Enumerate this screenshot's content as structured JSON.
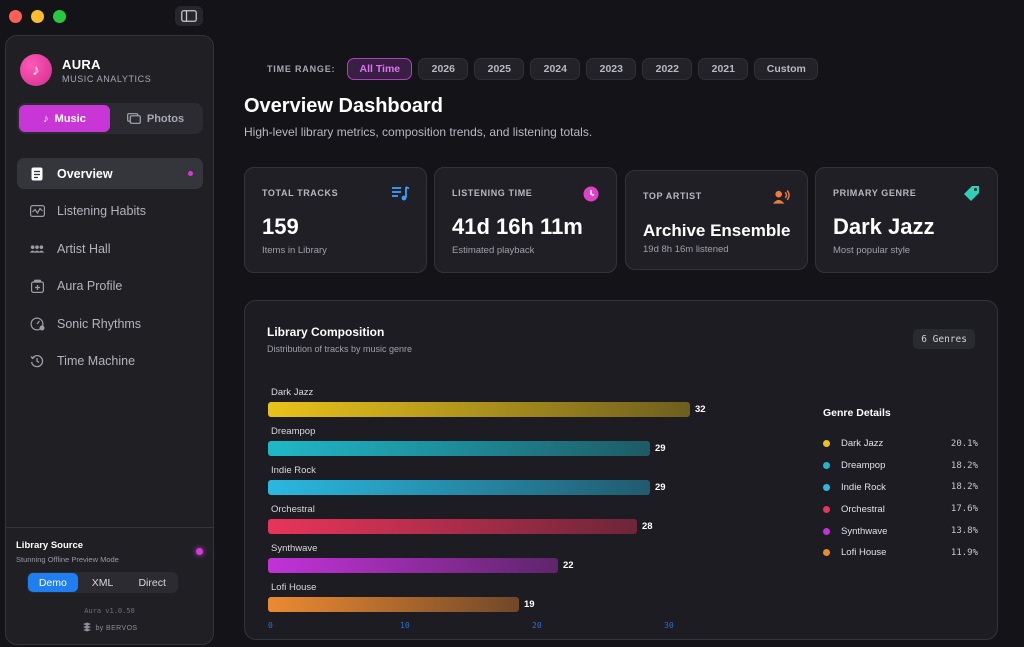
{
  "brand": {
    "name": "AURA",
    "subtitle": "MUSIC ANALYTICS"
  },
  "mode_switch": [
    {
      "label": "Music",
      "icon": "music-note-icon",
      "active": true
    },
    {
      "label": "Photos",
      "icon": "photos-icon",
      "active": false
    }
  ],
  "nav": [
    {
      "label": "Overview",
      "icon": "document-icon",
      "active": true
    },
    {
      "label": "Listening Habits",
      "icon": "activity-chart-icon",
      "active": false
    },
    {
      "label": "Artist Hall",
      "icon": "people-icon",
      "active": false
    },
    {
      "label": "Aura Profile",
      "icon": "profile-box-icon",
      "active": false
    },
    {
      "label": "Sonic Rhythms",
      "icon": "gauge-icon",
      "active": false
    },
    {
      "label": "Time Machine",
      "icon": "history-icon",
      "active": false
    }
  ],
  "library_source": {
    "title": "Library Source",
    "subtitle": "Stunning Offline Preview Mode",
    "options": [
      "Demo",
      "XML",
      "Direct"
    ],
    "selected": "Demo",
    "version": "Aura v1.0.50",
    "byline": "by BERVOS"
  },
  "time_range": {
    "label": "TIME RANGE:",
    "options": [
      "All Time",
      "2026",
      "2025",
      "2024",
      "2023",
      "2022",
      "2021",
      "Custom"
    ],
    "selected": "All Time"
  },
  "header": {
    "title": "Overview Dashboard",
    "subtitle": "High-level library metrics, composition trends, and listening totals."
  },
  "stats": [
    {
      "label": "TOTAL TRACKS",
      "value": "159",
      "sub": "Items in Library",
      "icon": "playlist-icon",
      "color": "#3aa0ff"
    },
    {
      "label": "LISTENING TIME",
      "value": "41d 16h 11m",
      "sub": "Estimated playback",
      "icon": "clock-icon",
      "color": "#e040c8"
    },
    {
      "label": "TOP ARTIST",
      "value": "Archive Ensemble",
      "sub": "19d 8h 16m listened",
      "icon": "artist-speaking-icon",
      "color": "#f07a3c"
    },
    {
      "label": "PRIMARY GENRE",
      "value": "Dark Jazz",
      "sub": "Most popular style",
      "icon": "tag-icon",
      "color": "#2fd0b8"
    }
  ],
  "composition": {
    "title": "Library Composition",
    "subtitle": "Distribution of tracks by music genre",
    "badge": "6 Genres",
    "details_title": "Genre Details"
  },
  "chart_data": {
    "type": "bar",
    "orientation": "horizontal",
    "title": "Library Composition",
    "categories": [
      "Dark Jazz",
      "Dreampop",
      "Indie Rock",
      "Orchestral",
      "Synthwave",
      "Lofi House"
    ],
    "values": [
      32,
      29,
      29,
      28,
      22,
      19
    ],
    "percentages": [
      "20.1%",
      "18.2%",
      "18.2%",
      "17.6%",
      "13.8%",
      "11.9%"
    ],
    "colors": [
      "#e8c21a",
      "#1fb8c8",
      "#2ab8e0",
      "#e8345a",
      "#c232d8",
      "#ec8a32"
    ],
    "x_ticks": [
      "0",
      "10",
      "20",
      "30"
    ],
    "xlim": [
      0,
      32.9
    ]
  }
}
